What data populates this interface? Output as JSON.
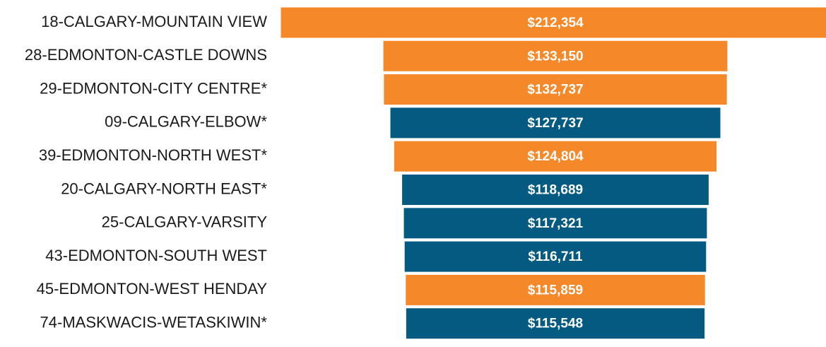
{
  "chart_data": {
    "type": "funnel",
    "categories": [
      "18-CALGARY-MOUNTAIN VIEW",
      "28-EDMONTON-CASTLE DOWNS",
      "29-EDMONTON-CITY CENTRE*",
      "09-CALGARY-ELBOW*",
      "39-EDMONTON-NORTH WEST*",
      "20-CALGARY-NORTH EAST*",
      "25-CALGARY-VARSITY",
      "43-EDMONTON-SOUTH WEST",
      "45-EDMONTON-WEST HENDAY",
      "74-MASKWACIS-WETASKIWIN*"
    ],
    "values": [
      212354,
      133150,
      132737,
      127737,
      124804,
      118689,
      117321,
      116711,
      115859,
      115548
    ],
    "value_labels": [
      "$212,354",
      "$133,150",
      "$132,737",
      "$127,737",
      "$124,804",
      "$118,689",
      "$117,321",
      "$116,711",
      "$115,859",
      "$115,548"
    ],
    "colors": [
      "#f5892a",
      "#f5892a",
      "#f5892a",
      "#045a80",
      "#f5892a",
      "#045a80",
      "#045a80",
      "#045a80",
      "#f5892a",
      "#045a80"
    ]
  }
}
